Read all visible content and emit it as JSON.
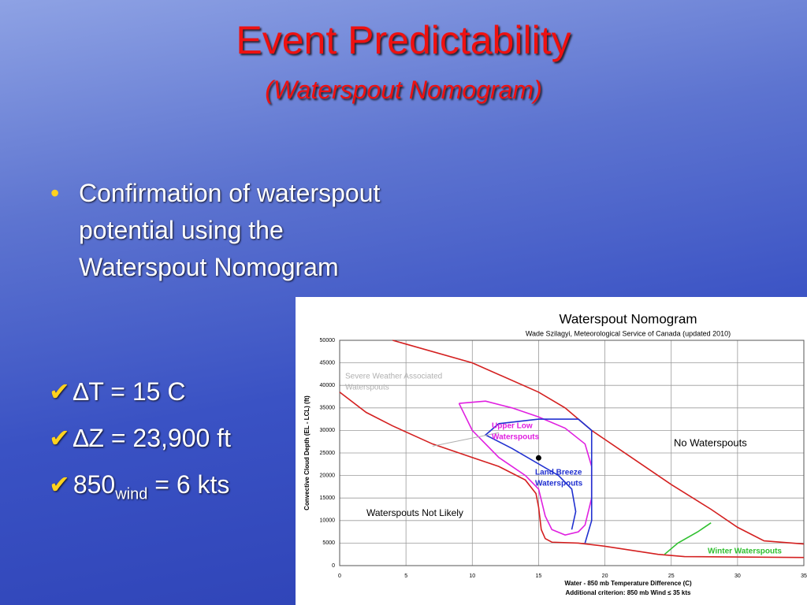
{
  "slide": {
    "title": "Event Predictability",
    "subtitle": "(Waterspout Nomogram)",
    "bullet": "Confirmation of waterspout potential using the Waterspout Nomogram",
    "checks": [
      {
        "text": "∆T = 15 C"
      },
      {
        "text": "∆Z = 23,900 ft"
      },
      {
        "text": "850",
        "sub": "wind",
        "rest": " = 6 kts"
      }
    ]
  },
  "chart_data": {
    "type": "line",
    "title": "Waterspout Nomogram",
    "subtitle": "Wade Szilagyi, Meteorological Service of Canada (updated 2010)",
    "x_label": "Water - 850 mb Temperature Difference (C)",
    "note": "Additional criterion: 850 mb Wind ≤ 35 kts",
    "y_label": "Convective Cloud Depth (EL - LCL) (ft)",
    "xlim": [
      0,
      35
    ],
    "xticks": [
      0,
      5,
      10,
      15,
      20,
      25,
      30,
      35
    ],
    "ylim": [
      0,
      50000
    ],
    "yticks": [
      0,
      5000,
      10000,
      15000,
      20000,
      25000,
      30000,
      35000,
      40000,
      45000,
      50000
    ],
    "grid": true,
    "series": [
      {
        "color": "#d42020",
        "x": [
          4,
          10,
          15,
          17,
          19,
          22,
          25,
          28,
          30,
          32,
          35
        ],
        "values": [
          50000,
          45000,
          38500,
          35000,
          30000,
          24000,
          18000,
          12500,
          8500,
          5500,
          4800
        ]
      },
      {
        "color": "#d42020",
        "x": [
          0,
          2,
          4,
          7,
          10,
          12,
          14,
          14.8,
          15,
          15.2,
          15.5,
          16,
          18,
          20,
          24,
          26,
          35
        ],
        "values": [
          38500,
          34000,
          31000,
          27000,
          24000,
          22000,
          19000,
          16000,
          13000,
          8000,
          6000,
          5200,
          5000,
          4300,
          2500,
          2000,
          1800
        ]
      },
      {
        "color": "#e020e0",
        "x": [
          9,
          11,
          13,
          15,
          17,
          18.5,
          19,
          19,
          18.5,
          18,
          17,
          16,
          15.5,
          15,
          14,
          12,
          10,
          9
        ],
        "values": [
          36000,
          36500,
          35000,
          33000,
          30500,
          27000,
          22000,
          15000,
          9000,
          7500,
          6800,
          8000,
          11000,
          17000,
          20000,
          24000,
          30000,
          36000
        ]
      },
      {
        "color": "#2030d0",
        "x": [
          18.5,
          19,
          19,
          19,
          18,
          15,
          12,
          11,
          13,
          16.5,
          17.5,
          17.8,
          17.5
        ],
        "values": [
          5000,
          10000,
          20000,
          30000,
          32500,
          32500,
          31500,
          29000,
          26000,
          20000,
          17000,
          12000,
          8000
        ]
      },
      {
        "color": "#30c030",
        "x": [
          24.5,
          25.5,
          27,
          28
        ],
        "values": [
          2500,
          5000,
          7500,
          9500
        ]
      },
      {
        "color": "#b0b0b0",
        "x": [
          7,
          12
        ],
        "values": [
          26500,
          29500
        ]
      }
    ],
    "point": {
      "x": 15,
      "value": 23900,
      "color": "#000000"
    },
    "annotations": [
      {
        "lines": [
          "Severe Weather Associated",
          "Waterspouts"
        ],
        "color": "#b0b0b0"
      },
      {
        "lines": [
          "Upper Low",
          "Waterspouts"
        ],
        "color": "#e020e0"
      },
      {
        "lines": [
          "Land Breeze",
          "Waterspouts"
        ],
        "color": "#2030d0"
      },
      {
        "lines": [
          "No Waterspouts"
        ],
        "color": "#000000"
      },
      {
        "lines": [
          "Waterspouts Not Likely"
        ],
        "color": "#000000"
      },
      {
        "lines": [
          "Winter Waterspouts"
        ],
        "color": "#30c030"
      }
    ]
  }
}
